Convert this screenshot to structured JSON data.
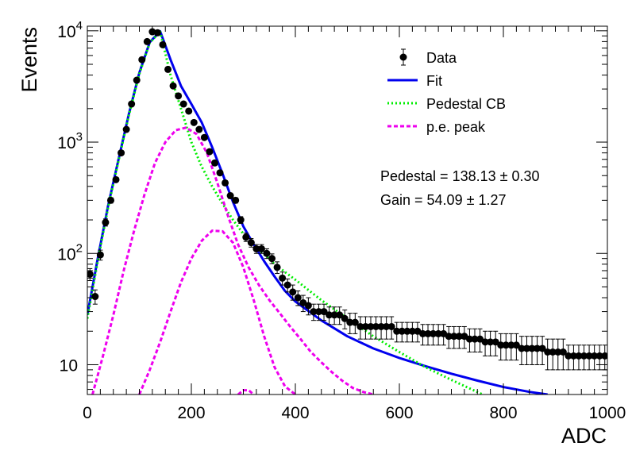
{
  "chart_data": {
    "type": "scatter",
    "title": "",
    "xlabel": "ADC",
    "ylabel": "Events",
    "xlim": [
      0,
      1000
    ],
    "ylim": [
      5.4,
      11000
    ],
    "yscale": "log",
    "grid": false,
    "legend_position": "top-right",
    "x_ticks": [
      "0",
      "200",
      "400",
      "600",
      "800",
      "1000"
    ],
    "y_ticks": [
      {
        "value": 10,
        "base": "10",
        "exp": ""
      },
      {
        "value": 100,
        "base": "10",
        "exp": "2"
      },
      {
        "value": 1000,
        "base": "10",
        "exp": "3"
      },
      {
        "value": 10000,
        "base": "10",
        "exp": "4"
      }
    ],
    "annotations": [
      {
        "text": "Pedestal = 138.13 ± 0.30"
      },
      {
        "text": "Gain = 54.09 ± 1.27"
      }
    ],
    "series": [
      {
        "name": "Data",
        "style": "points",
        "color": "#000000",
        "x": [
          0,
          10,
          20,
          30,
          40,
          50,
          60,
          70,
          80,
          90,
          100,
          110,
          120,
          130,
          140,
          150,
          160,
          170,
          180,
          190,
          200,
          210,
          220,
          230,
          240,
          250,
          260,
          270,
          280,
          290,
          300,
          310,
          320,
          330,
          340,
          350,
          360,
          370,
          380,
          390,
          400,
          410,
          420,
          430,
          440,
          450,
          460,
          470,
          480,
          490,
          500,
          510,
          520,
          530,
          540,
          550,
          560,
          570,
          580,
          590,
          600,
          610,
          620,
          630,
          640,
          650,
          660,
          670,
          680,
          690,
          700,
          710,
          720,
          730,
          740,
          750,
          760,
          770,
          780,
          790,
          800,
          810,
          820,
          830,
          840,
          850,
          860,
          870,
          880,
          890,
          900,
          910,
          920,
          930,
          940,
          950,
          960,
          970,
          980,
          990
        ],
        "y": [
          65,
          41,
          97,
          190,
          300,
          460,
          800,
          1300,
          2200,
          3600,
          5500,
          8000,
          9800,
          9600,
          7500,
          4500,
          3200,
          2600,
          2200,
          1900,
          1500,
          1300,
          1100,
          820,
          650,
          530,
          430,
          330,
          300,
          200,
          140,
          125,
          110,
          110,
          100,
          90,
          75,
          60,
          52,
          45,
          40,
          36,
          34,
          30,
          30,
          30,
          28,
          28,
          28,
          26,
          24,
          24,
          22,
          22,
          22,
          22,
          22,
          22,
          22,
          20,
          20,
          20,
          20,
          20,
          19,
          19,
          19,
          19,
          19,
          18,
          18,
          18,
          18,
          17,
          17,
          17,
          16,
          16,
          16,
          15,
          15,
          15,
          15,
          14,
          14,
          14,
          14,
          14,
          13,
          13,
          13,
          13,
          12,
          12,
          12,
          12,
          12,
          12,
          12,
          12
        ],
        "y_err": [
          8,
          6,
          10,
          14,
          17,
          21,
          28,
          36,
          47,
          60,
          74,
          89,
          99,
          98,
          87,
          67,
          57,
          51,
          47,
          44,
          39,
          36,
          33,
          29,
          25,
          23,
          21,
          18,
          17,
          14,
          12,
          11,
          10,
          10,
          10,
          9,
          9,
          8,
          7,
          7,
          6,
          6,
          6,
          5,
          5,
          5,
          5,
          5,
          5,
          5,
          5,
          5,
          5,
          5,
          5,
          5,
          5,
          5,
          5,
          4,
          4,
          4,
          4,
          4,
          4,
          4,
          4,
          4,
          4,
          4,
          4,
          4,
          4,
          4,
          4,
          4,
          4,
          4,
          4,
          4,
          4,
          4,
          4,
          4,
          4,
          4,
          4,
          4,
          4,
          4,
          4,
          4,
          3,
          3,
          3,
          3,
          3,
          3,
          3,
          3
        ]
      },
      {
        "name": "Fit",
        "style": "solid",
        "color": "#0000ee",
        "x": [
          0,
          20,
          40,
          60,
          80,
          100,
          120,
          140,
          160,
          180,
          200,
          220,
          240,
          260,
          280,
          300,
          320,
          340,
          360,
          380,
          400,
          450,
          500,
          550,
          600,
          650,
          700,
          750,
          800,
          850,
          885
        ],
        "y": [
          28,
          90,
          270,
          700,
          1800,
          4200,
          7900,
          9900,
          5500,
          3200,
          2200,
          1500,
          900,
          520,
          290,
          175,
          120,
          85,
          62,
          46,
          37,
          25,
          18,
          14,
          11.5,
          9.7,
          8.3,
          7.2,
          6.3,
          5.7,
          5.4
        ]
      },
      {
        "name": "Pedestal CB",
        "style": "dotted",
        "color": "#00ee00",
        "x": [
          0,
          20,
          40,
          60,
          80,
          100,
          120,
          140,
          160,
          180,
          200,
          220,
          240,
          260,
          280,
          300,
          320,
          340,
          360,
          380,
          400,
          450,
          500,
          550,
          600,
          650,
          700,
          760
        ],
        "y": [
          26,
          85,
          260,
          680,
          1750,
          4100,
          7800,
          9800,
          4000,
          2000,
          1000,
          600,
          400,
          280,
          200,
          150,
          120,
          98,
          80,
          68,
          58,
          38,
          26,
          18,
          13,
          9.5,
          7.3,
          5.4
        ]
      },
      {
        "name": "p.e. peak",
        "style": "dashed",
        "color": "#ee00ee",
        "x": [
          10,
          30,
          50,
          70,
          90,
          110,
          130,
          150,
          170,
          190,
          210,
          230,
          250,
          270,
          290,
          310,
          330,
          350,
          370,
          390,
          410,
          430,
          450,
          470,
          490,
          510,
          530,
          550
        ],
        "y": [
          5.4,
          12,
          28,
          70,
          160,
          340,
          650,
          1000,
          1280,
          1350,
          1180,
          800,
          430,
          220,
          120,
          75,
          52,
          38,
          29,
          22,
          17,
          13,
          10.5,
          8.6,
          7.2,
          6.2,
          5.7,
          5.4
        ]
      },
      {
        "name": "",
        "style": "dashed",
        "color": "#ee00ee",
        "x": [
          100,
          120,
          140,
          160,
          180,
          200,
          220,
          240,
          260,
          280,
          300,
          320,
          340,
          360,
          380,
          400
        ],
        "y": [
          5.4,
          9,
          16,
          30,
          55,
          90,
          130,
          160,
          158,
          125,
          75,
          38,
          18,
          9.5,
          6.4,
          5.4
        ]
      },
      {
        "name": "",
        "style": "dashed",
        "color": "#ee00ee",
        "x": [
          290,
          300,
          310,
          320
        ],
        "y": [
          5.4,
          5.9,
          5.9,
          5.4
        ]
      }
    ]
  }
}
